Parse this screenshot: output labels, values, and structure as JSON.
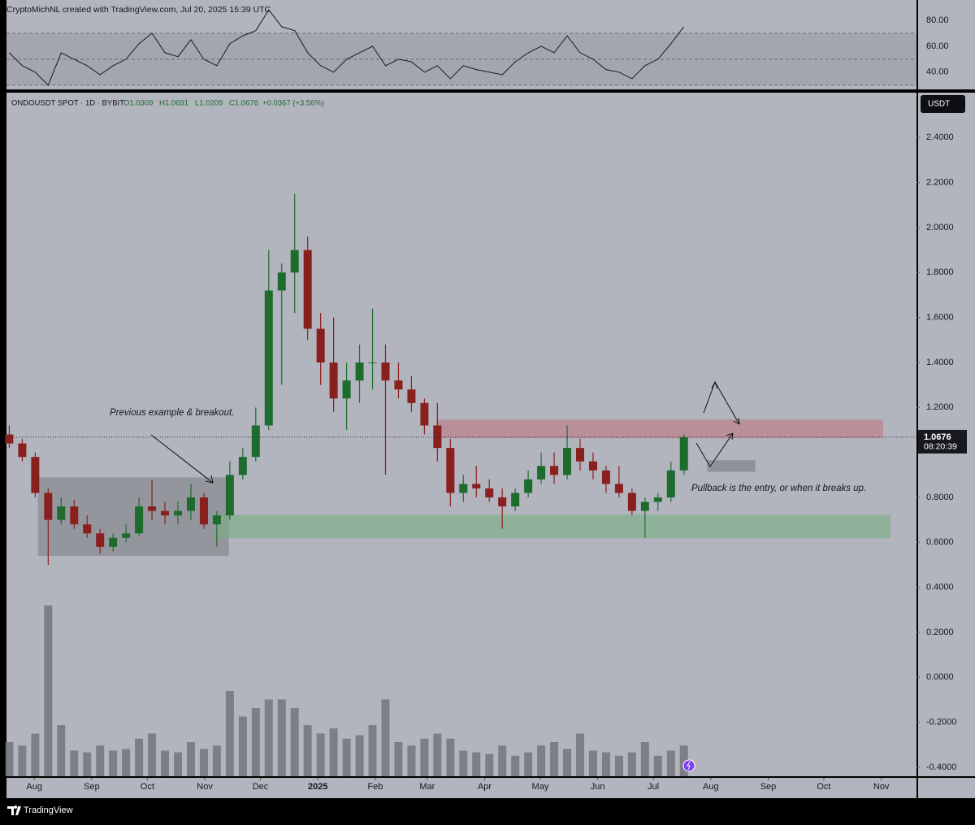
{
  "chart_data": {
    "type": "candlestick",
    "attribution": "CryptoMichNL created with TradingView.com, Jul 20, 2025 15:39 UTC",
    "symbol": "ONDOUSDT SPOT · 1D · BYBIT",
    "ohlc": [
      "O1.0309",
      "H1.0691",
      "L1.0209",
      "C1.0676"
    ],
    "change": "+0.0367 (+3.56%)",
    "currency": "USDT",
    "last_price": 1.0676,
    "countdown": "08:20:39",
    "brand": "TradingView",
    "annotations": [
      "Previous example & breakout.",
      "Pullback is the entry, or when it breaks up."
    ],
    "xlim": [
      "2024-07-17",
      "2025-11-20"
    ],
    "xticks": [
      {
        "value": "2024-08-01",
        "label": "Aug"
      },
      {
        "value": "2024-09-01",
        "label": "Sep"
      },
      {
        "value": "2024-10-01",
        "label": "Oct"
      },
      {
        "value": "2024-11-01",
        "label": "Nov"
      },
      {
        "value": "2024-12-01",
        "label": "Dec"
      },
      {
        "value": "2025-01-01",
        "label": "2025"
      },
      {
        "value": "2025-02-01",
        "label": "Feb"
      },
      {
        "value": "2025-03-01",
        "label": "Mar"
      },
      {
        "value": "2025-04-01",
        "label": "Apr"
      },
      {
        "value": "2025-05-01",
        "label": "May"
      },
      {
        "value": "2025-06-01",
        "label": "Jun"
      },
      {
        "value": "2025-07-01",
        "label": "Jul"
      },
      {
        "value": "2025-08-01",
        "label": "Aug"
      },
      {
        "value": "2025-09-01",
        "label": "Sep"
      },
      {
        "value": "2025-10-01",
        "label": "Oct"
      },
      {
        "value": "2025-11-01",
        "label": "Nov"
      }
    ],
    "ylim": [
      -0.44,
      2.6
    ],
    "yticks": [
      {
        "value": -0.4,
        "label": "-0.4000"
      },
      {
        "value": -0.2,
        "label": "-0.2000"
      },
      {
        "value": 0,
        "label": "0.0000"
      },
      {
        "value": 0.2,
        "label": "0.2000"
      },
      {
        "value": 0.4,
        "label": "0.4000"
      },
      {
        "value": 0.6,
        "label": "0.6000"
      },
      {
        "value": 0.8,
        "label": "0.8000"
      },
      {
        "value": 1.2,
        "label": "1.2000"
      },
      {
        "value": 1.4,
        "label": "1.4000"
      },
      {
        "value": 1.6,
        "label": "1.6000"
      },
      {
        "value": 1.8,
        "label": "1.8000"
      },
      {
        "value": 2,
        "label": "2.0000"
      },
      {
        "value": 2.2,
        "label": "2.2000"
      },
      {
        "value": 2.4,
        "label": "2.4000"
      }
    ],
    "candles": {
      "up_color": "#1e6b2e",
      "down_color": "#8a1f1f",
      "dates": [
        "2024-07-15",
        "2024-07-22",
        "2024-07-29",
        "2024-08-05",
        "2024-08-12",
        "2024-08-19",
        "2024-08-26",
        "2024-09-02",
        "2024-09-09",
        "2024-09-16",
        "2024-09-23",
        "2024-09-30",
        "2024-10-07",
        "2024-10-14",
        "2024-10-21",
        "2024-10-28",
        "2024-11-04",
        "2024-11-11",
        "2024-11-18",
        "2024-11-25",
        "2024-12-02",
        "2024-12-09",
        "2024-12-16",
        "2024-12-23",
        "2024-12-30",
        "2025-01-06",
        "2025-01-13",
        "2025-01-20",
        "2025-01-27",
        "2025-02-03",
        "2025-02-10",
        "2025-02-17",
        "2025-02-24",
        "2025-03-03",
        "2025-03-10",
        "2025-03-17",
        "2025-03-24",
        "2025-03-31",
        "2025-04-07",
        "2025-04-14",
        "2025-04-21",
        "2025-04-28",
        "2025-05-05",
        "2025-05-12",
        "2025-05-19",
        "2025-05-26",
        "2025-06-02",
        "2025-06-09",
        "2025-06-16",
        "2025-06-23",
        "2025-06-30",
        "2025-07-07",
        "2025-07-14"
      ],
      "open": [
        1.08,
        1.04,
        0.98,
        0.82,
        0.7,
        0.76,
        0.68,
        0.64,
        0.58,
        0.62,
        0.64,
        0.76,
        0.74,
        0.72,
        0.74,
        0.8,
        0.68,
        0.72,
        0.9,
        0.98,
        1.12,
        1.72,
        1.8,
        1.9,
        1.55,
        1.4,
        1.24,
        1.32,
        1.4,
        1.4,
        1.32,
        1.28,
        1.22,
        1.12,
        1.02,
        0.82,
        0.86,
        0.84,
        0.8,
        0.76,
        0.82,
        0.88,
        0.94,
        0.9,
        1.02,
        0.96,
        0.92,
        0.86,
        0.82,
        0.74,
        0.78,
        0.8,
        0.92
      ],
      "high": [
        1.12,
        1.06,
        1.0,
        0.84,
        0.8,
        0.79,
        0.72,
        0.66,
        0.64,
        0.68,
        0.8,
        0.88,
        0.78,
        0.78,
        0.86,
        0.82,
        0.74,
        0.96,
        1.02,
        1.2,
        1.9,
        1.84,
        2.15,
        1.96,
        1.62,
        1.6,
        1.4,
        1.48,
        1.64,
        1.48,
        1.4,
        1.34,
        1.24,
        1.22,
        1.06,
        0.9,
        0.94,
        0.88,
        0.84,
        0.84,
        0.92,
        1.0,
        1.0,
        1.12,
        1.06,
        1.0,
        0.94,
        0.94,
        0.84,
        0.8,
        0.82,
        0.96,
        1.08
      ],
      "low": [
        1.02,
        0.96,
        0.8,
        0.5,
        0.68,
        0.66,
        0.62,
        0.55,
        0.56,
        0.6,
        0.63,
        0.7,
        0.68,
        0.68,
        0.7,
        0.66,
        0.58,
        0.7,
        0.88,
        0.96,
        1.1,
        1.3,
        1.62,
        1.5,
        1.3,
        1.18,
        1.1,
        1.22,
        1.28,
        0.9,
        1.24,
        1.18,
        1.08,
        0.96,
        0.76,
        0.78,
        0.8,
        0.78,
        0.66,
        0.74,
        0.8,
        0.86,
        0.86,
        0.88,
        0.92,
        0.88,
        0.82,
        0.8,
        0.72,
        0.62,
        0.74,
        0.78,
        0.9
      ],
      "close": [
        1.04,
        0.98,
        0.82,
        0.7,
        0.76,
        0.68,
        0.64,
        0.58,
        0.62,
        0.64,
        0.76,
        0.74,
        0.72,
        0.74,
        0.8,
        0.68,
        0.72,
        0.9,
        0.98,
        1.12,
        1.72,
        1.8,
        1.9,
        1.55,
        1.4,
        1.24,
        1.32,
        1.4,
        1.4,
        1.32,
        1.28,
        1.22,
        1.12,
        1.02,
        0.82,
        0.86,
        0.84,
        0.8,
        0.76,
        0.82,
        0.88,
        0.94,
        0.9,
        1.02,
        0.96,
        0.92,
        0.86,
        0.82,
        0.74,
        0.78,
        0.8,
        0.92,
        1.0676
      ]
    },
    "volume": {
      "color": "#6b6e76",
      "values": [
        20,
        18,
        25,
        100,
        30,
        15,
        14,
        18,
        15,
        16,
        22,
        25,
        15,
        14,
        20,
        16,
        18,
        50,
        35,
        40,
        45,
        45,
        40,
        30,
        25,
        28,
        22,
        24,
        30,
        45,
        20,
        18,
        22,
        25,
        22,
        15,
        14,
        13,
        18,
        12,
        14,
        18,
        20,
        16,
        25,
        15,
        14,
        12,
        14,
        20,
        12,
        15,
        18
      ]
    },
    "rsi": {
      "color": "#1a1a1a",
      "band_color": "#9a9da6",
      "ylim": [
        28,
        95.6
      ],
      "yticks": [
        {
          "value": 40,
          "label": "40.00"
        },
        {
          "value": 60,
          "label": "60.00"
        },
        {
          "value": 80,
          "label": "80.00"
        }
      ],
      "levels": [
        30,
        50,
        70
      ],
      "values": [
        55,
        45,
        40,
        30,
        55,
        50,
        45,
        38,
        45,
        50,
        62,
        70,
        55,
        52,
        65,
        50,
        45,
        62,
        68,
        72,
        88,
        75,
        72,
        55,
        45,
        40,
        50,
        55,
        60,
        45,
        50,
        48,
        40,
        45,
        35,
        45,
        42,
        40,
        38,
        48,
        55,
        60,
        55,
        68,
        55,
        50,
        42,
        40,
        35,
        45,
        50,
        62,
        75
      ]
    },
    "zones": [
      {
        "x": [
          "2024-08-03",
          "2024-11-14"
        ],
        "y": [
          0.539,
          0.889
        ],
        "color": "rgba(110,112,118,0.45)"
      },
      {
        "x": [
          "2025-03-06",
          "2025-11-02"
        ],
        "y": [
          1.063,
          1.146
        ],
        "color": "rgba(190,120,130,0.6)"
      },
      {
        "x": [
          "2024-11-07",
          "2025-11-06"
        ],
        "y": [
          0.618,
          0.723
        ],
        "color": "rgba(120,175,130,0.6)"
      },
      {
        "x": [
          "2025-07-30",
          "2025-08-25"
        ],
        "y": [
          0.914,
          0.965
        ],
        "color": "rgba(120,122,128,0.6)"
      }
    ]
  }
}
